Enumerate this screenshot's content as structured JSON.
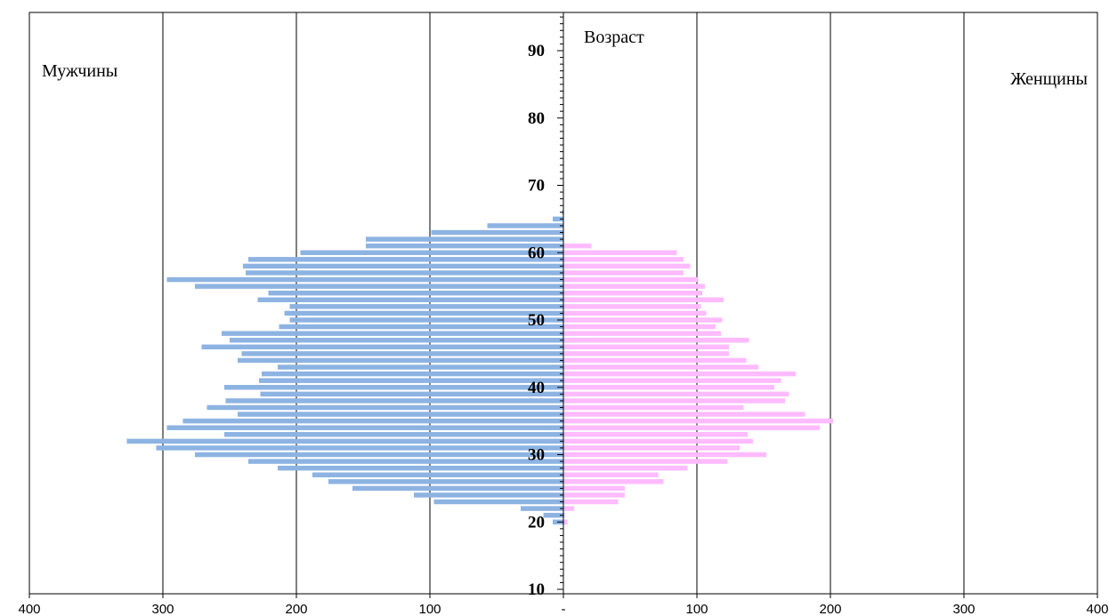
{
  "chart_data": {
    "type": "bar",
    "orientation": "horizontal",
    "chart_kind": "population pyramid",
    "labels": {
      "left_group": "Мужчины",
      "right_group": "Женщины",
      "center_axis": "Возраст"
    },
    "x_ticks": [
      "400",
      "300",
      "200",
      "100",
      "-",
      "100",
      "200",
      "300",
      "400"
    ],
    "y_ticks": [
      "10",
      "20",
      "30",
      "40",
      "50",
      "60",
      "70",
      "80",
      "90"
    ],
    "xlim": [
      -400,
      400
    ],
    "ylim": [
      10,
      96
    ],
    "grid": "vertical lines at every 100",
    "colors": {
      "men": "#8DB3E2",
      "women": "#FFBBFF",
      "axis": "#000000",
      "grid": "#000000"
    },
    "ages": [
      20,
      21,
      22,
      23,
      24,
      25,
      26,
      27,
      28,
      29,
      30,
      31,
      32,
      33,
      34,
      35,
      36,
      37,
      38,
      39,
      40,
      41,
      42,
      43,
      44,
      45,
      46,
      47,
      48,
      49,
      50,
      51,
      52,
      53,
      54,
      55,
      56,
      57,
      58,
      59,
      60,
      61,
      62,
      63,
      64,
      65,
      66
    ],
    "series": [
      {
        "name": "Мужчины",
        "values": [
          8,
          15,
          32,
          97,
          112,
          158,
          176,
          188,
          214,
          236,
          276,
          305,
          327,
          254,
          297,
          285,
          244,
          267,
          253,
          227,
          254,
          228,
          226,
          214,
          244,
          241,
          271,
          250,
          256,
          213,
          205,
          209,
          205,
          229,
          221,
          276,
          297,
          238,
          240,
          236,
          197,
          148,
          148,
          99,
          57,
          8,
          1
        ]
      },
      {
        "name": "Женщины",
        "values": [
          3,
          1,
          8,
          41,
          46,
          46,
          75,
          71,
          93,
          123,
          152,
          132,
          142,
          138,
          192,
          202,
          181,
          135,
          166,
          169,
          158,
          163,
          174,
          146,
          137,
          124,
          124,
          139,
          118,
          114,
          119,
          107,
          103,
          120,
          104,
          106,
          101,
          90,
          95,
          90,
          85,
          21,
          0,
          0,
          0,
          0,
          0
        ]
      }
    ]
  }
}
